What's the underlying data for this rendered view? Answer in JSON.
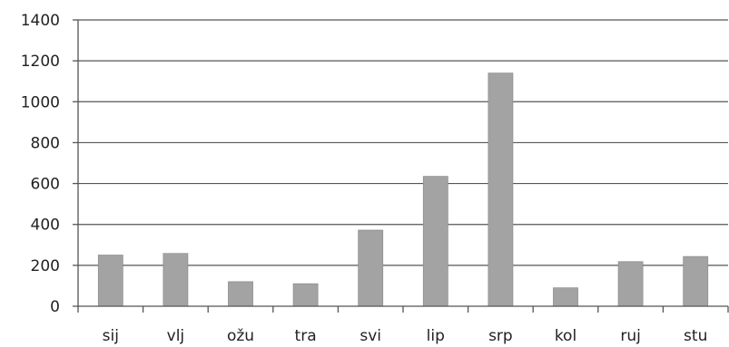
{
  "chart_data": {
    "type": "bar",
    "categories": [
      "sij",
      "vlj",
      "ožu",
      "tra",
      "svi",
      "lip",
      "srp",
      "kol",
      "ruj",
      "stu"
    ],
    "values": [
      250,
      258,
      120,
      110,
      372,
      635,
      1140,
      90,
      218,
      243
    ],
    "ylim": [
      0,
      1400
    ],
    "yticks": [
      "0",
      "200",
      "400",
      "600",
      "800",
      "1000",
      "1200",
      "1400"
    ],
    "grid": true,
    "legend": "none",
    "colors": {
      "bar": "#a3a3a3",
      "grid": "#555555"
    }
  }
}
